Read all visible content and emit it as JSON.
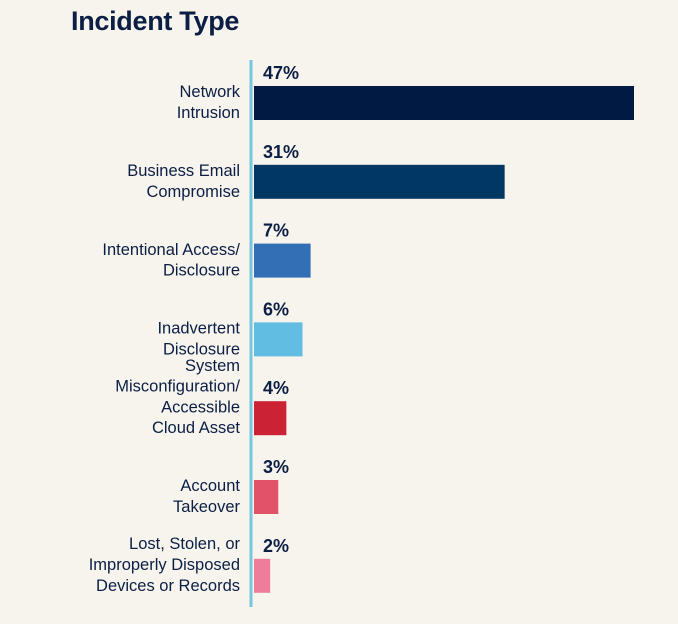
{
  "chart_data": {
    "type": "bar",
    "orientation": "horizontal",
    "title": "Incident Type",
    "xlabel": "",
    "ylabel": "",
    "value_suffix": "%",
    "xlim": [
      0,
      47
    ],
    "grid": false,
    "legend": "none",
    "categories": [
      [
        "Network",
        "Intrusion"
      ],
      [
        "Business Email",
        "Compromise"
      ],
      [
        "Intentional Access/",
        "Disclosure"
      ],
      [
        "Inadvertent",
        "Disclosure"
      ],
      [
        "System",
        "Misconfiguration/",
        "Accessible",
        "Cloud Asset"
      ],
      [
        "Account",
        "Takeover"
      ],
      [
        "Lost, Stolen, or",
        "Improperly Disposed",
        "Devices or Records"
      ]
    ],
    "values": [
      47,
      31,
      7,
      6,
      4,
      3,
      2
    ],
    "data_labels": [
      "47%",
      "31%",
      "7%",
      "6%",
      "4%",
      "3%",
      "2%"
    ],
    "bar_colors": [
      "#001a43",
      "#013763",
      "#336fb5",
      "#62bde2",
      "#cc2236",
      "#e2536a",
      "#ef7c9b"
    ],
    "axis_color": "#76c7df",
    "text_color": "#0b1f45"
  }
}
